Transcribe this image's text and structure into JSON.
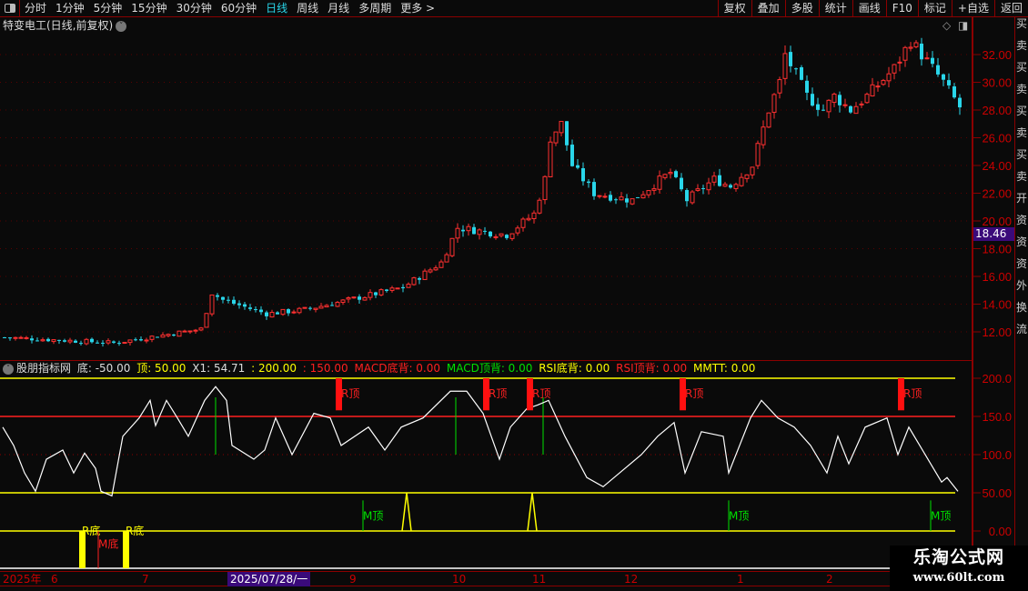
{
  "toolbar": {
    "periods": [
      "分时",
      "1分钟",
      "5分钟",
      "15分钟",
      "30分钟",
      "60分钟",
      "日线",
      "周线",
      "月线",
      "多周期",
      "更多 >"
    ],
    "active_period": "日线",
    "actions": [
      "复权",
      "叠加",
      "多股",
      "统计",
      "画线",
      "F10",
      "标记",
      "+自选",
      "返回"
    ]
  },
  "title": {
    "stock": "特变电工(日线,前复权)"
  },
  "price_axis": {
    "ticks": [
      "32.00",
      "30.00",
      "28.00",
      "26.00",
      "24.00",
      "22.00",
      "20.00",
      "18.00",
      "16.00",
      "14.00",
      "12.00"
    ],
    "current_price": "18.46"
  },
  "price_path": [
    [
      0,
      11.6
    ],
    [
      20,
      11.2
    ],
    [
      36,
      12.2
    ],
    [
      38,
      14.8
    ],
    [
      40,
      14.3
    ],
    [
      48,
      13.3
    ],
    [
      55,
      13.6
    ],
    [
      62,
      14.2
    ],
    [
      73,
      15.2
    ],
    [
      80,
      17.0
    ],
    [
      83,
      19.5
    ],
    [
      92,
      19.0
    ],
    [
      97,
      20.5
    ],
    [
      99,
      23
    ],
    [
      100,
      26
    ],
    [
      102,
      27
    ],
    [
      104,
      24
    ],
    [
      108,
      22
    ],
    [
      115,
      21.5
    ],
    [
      122,
      23.5
    ],
    [
      125,
      21.5
    ],
    [
      130,
      23
    ],
    [
      133,
      22.5
    ],
    [
      137,
      24
    ],
    [
      140,
      28
    ],
    [
      142,
      30
    ],
    [
      143,
      32
    ],
    [
      147,
      29
    ],
    [
      150,
      28
    ],
    [
      152,
      29
    ],
    [
      155,
      28
    ],
    [
      158,
      29
    ],
    [
      163,
      31
    ],
    [
      166,
      33
    ],
    [
      168,
      32
    ],
    [
      172,
      30
    ],
    [
      175,
      28.2
    ]
  ],
  "colors": {
    "up": "#ff3030",
    "down": "#29d6ea",
    "grid": "#8b0000",
    "yellow": "#ffff00",
    "green": "#00e000"
  },
  "indicator": {
    "name": "股朋指标网",
    "params": [
      {
        "label": "底: -50.00",
        "color": "#dddddd"
      },
      {
        "label": "顶: 50.00",
        "color": "#ffff00"
      },
      {
        "label": "X1: 54.71",
        "color": "#dddddd"
      },
      {
        "label": ": 200.00",
        "color": "#ffff00"
      },
      {
        "label": ": 150.00",
        "color": "#ff2020"
      },
      {
        "label": "MACD底背: 0.00",
        "color": "#ff2020"
      },
      {
        "label": "MACD顶背: 0.00",
        "color": "#00e000"
      },
      {
        "label": "RSI底背: 0.00",
        "color": "#ffff00"
      },
      {
        "label": "RSI顶背: 0.00",
        "color": "#ff2020"
      },
      {
        "label": "MMTT: 0.00",
        "color": "#ffff00"
      }
    ],
    "axis_ticks": [
      "200.0",
      "150.0",
      "100.0",
      "50.00",
      "0.00"
    ],
    "line": [
      [
        0,
        136
      ],
      [
        2,
        112
      ],
      [
        4,
        76
      ],
      [
        6,
        52
      ],
      [
        8,
        94
      ],
      [
        11,
        106
      ],
      [
        13,
        76
      ],
      [
        15,
        102
      ],
      [
        17,
        82
      ],
      [
        18,
        52
      ],
      [
        20,
        46
      ],
      [
        22,
        124
      ],
      [
        25,
        148
      ],
      [
        27,
        171
      ],
      [
        28,
        138
      ],
      [
        30,
        171
      ],
      [
        32,
        148
      ],
      [
        34,
        124
      ],
      [
        37,
        171
      ],
      [
        39,
        189
      ],
      [
        41,
        171
      ],
      [
        42,
        112
      ],
      [
        46,
        94
      ],
      [
        48,
        106
      ],
      [
        50,
        148
      ],
      [
        53,
        100
      ],
      [
        57,
        154
      ],
      [
        60,
        148
      ],
      [
        62,
        112
      ],
      [
        67,
        136
      ],
      [
        70,
        106
      ],
      [
        73,
        136
      ],
      [
        77,
        148
      ],
      [
        82,
        183
      ],
      [
        85,
        183
      ],
      [
        88,
        154
      ],
      [
        91,
        94
      ],
      [
        93,
        136
      ],
      [
        96,
        160
      ],
      [
        98,
        165
      ],
      [
        100,
        171
      ],
      [
        103,
        124
      ],
      [
        107,
        70
      ],
      [
        110,
        58
      ],
      [
        117,
        100
      ],
      [
        120,
        124
      ],
      [
        123,
        142
      ],
      [
        125,
        76
      ],
      [
        128,
        130
      ],
      [
        132,
        124
      ],
      [
        133,
        76
      ],
      [
        137,
        148
      ],
      [
        139,
        171
      ],
      [
        142,
        148
      ],
      [
        145,
        136
      ],
      [
        148,
        112
      ],
      [
        151,
        76
      ],
      [
        153,
        124
      ],
      [
        155,
        88
      ],
      [
        158,
        136
      ],
      [
        162,
        148
      ],
      [
        164,
        100
      ],
      [
        166,
        136
      ],
      [
        168,
        112
      ],
      [
        172,
        64
      ],
      [
        173,
        70
      ],
      [
        175,
        52
      ]
    ],
    "r_top_label": "R顶",
    "r_top": [
      61,
      88,
      96,
      124,
      164
    ],
    "green_lines": [
      39,
      83,
      99
    ],
    "r_bottom_label": "R底",
    "r_bottom": [
      14,
      22
    ],
    "m_bottom_label": "M底",
    "m_bottom": [
      17.5
    ],
    "m_top_label": "M顶",
    "m_top": [
      66,
      133,
      170
    ],
    "spikes": [
      74,
      97
    ]
  },
  "date_axis": {
    "labels": [
      "2025年",
      "6",
      "7",
      "2025/07/28/一",
      "9",
      "10",
      "11",
      "12",
      "1",
      "2"
    ]
  },
  "right_strip": "买卖买卖买卖买卖开资资资外换流",
  "watermark": {
    "title": "乐淘公式网",
    "url": "www.60lt.com"
  }
}
